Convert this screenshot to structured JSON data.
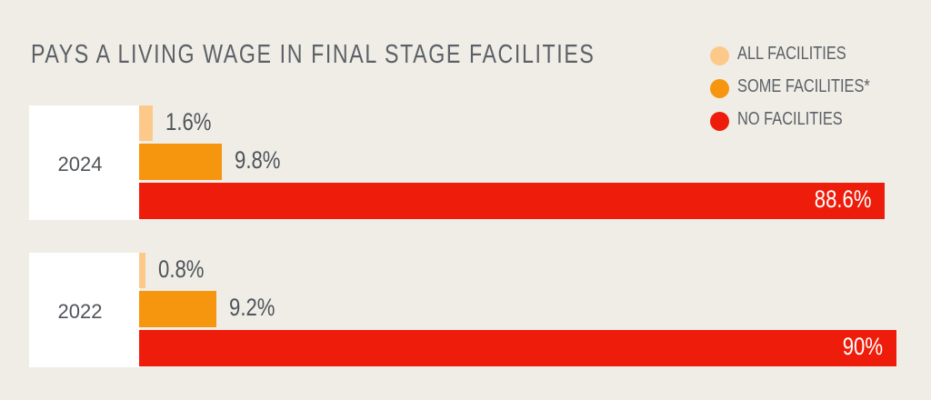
{
  "chart_data": {
    "type": "bar",
    "orientation": "horizontal",
    "title": "PAYS A LIVING WAGE IN FINAL STAGE FACILITIES",
    "categories": [
      "2024",
      "2022"
    ],
    "series": [
      {
        "name": "ALL FACILITIES",
        "color": "#fcc98a",
        "values": [
          1.6,
          0.8
        ],
        "labels": [
          "1.6%",
          "0.8%"
        ]
      },
      {
        "name": "SOME FACILITIES*",
        "color": "#f6960f",
        "values": [
          9.8,
          9.2
        ],
        "labels": [
          "9.8%",
          "9.2%"
        ]
      },
      {
        "name": "NO FACILITIES",
        "color": "#ee1d0b",
        "values": [
          88.6,
          90
        ],
        "labels": [
          "88.6%",
          "90%"
        ]
      }
    ],
    "xlim": [
      0,
      100
    ],
    "unit": "%",
    "grid": false,
    "legend_position": "top-right"
  }
}
